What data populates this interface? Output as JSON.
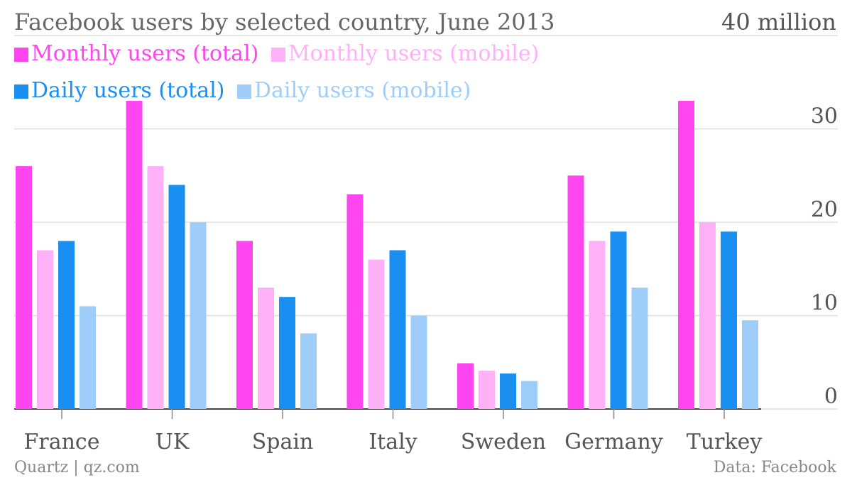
{
  "chart_data": {
    "type": "bar",
    "title": "Facebook users by selected country, June 2013",
    "unit_label": "40 million",
    "categories": [
      "France",
      "UK",
      "Spain",
      "Italy",
      "Sweden",
      "Germany",
      "Turkey"
    ],
    "series": [
      {
        "name": "Monthly users (total)",
        "color": "#ff45f0",
        "values": [
          26,
          33,
          18,
          23,
          4.9,
          25,
          33
        ]
      },
      {
        "name": "Monthly users (mobile)",
        "color": "#ffb1f8",
        "values": [
          17,
          26,
          13,
          16,
          4.1,
          18,
          20
        ]
      },
      {
        "name": "Daily users (total)",
        "color": "#1a8ff2",
        "values": [
          18,
          24,
          12,
          17,
          3.8,
          19,
          19
        ]
      },
      {
        "name": "Daily users (mobile)",
        "color": "#9fcdfa",
        "values": [
          11,
          20,
          8.1,
          10,
          3.0,
          13,
          9.5
        ]
      }
    ],
    "ylim": [
      0,
      40
    ],
    "yticks": [
      "0",
      "10",
      "20",
      "30"
    ],
    "ytick_values": [
      0,
      10,
      20,
      30
    ],
    "grid": true,
    "legend_position": "top-left",
    "source_left": "Quartz | qz.com",
    "source_right": "Data: Facebook"
  }
}
